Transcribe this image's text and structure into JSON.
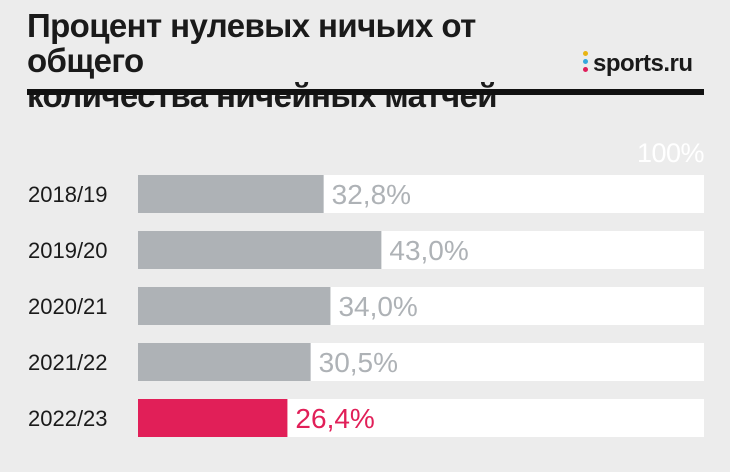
{
  "header": {
    "title_line1": "Процент нулевых ничьих от общего",
    "title_line2": "количества ничейных матчей",
    "logo_text": "sports.ru",
    "logo_dot_colors": [
      "#e8b413",
      "#35a7dd",
      "#df1d5a"
    ]
  },
  "colors": {
    "background": "#ececec",
    "track": "#ffffff",
    "bar": "#aeb2b6",
    "highlight": "#e11f58",
    "label_gray": "#aeb2b6"
  },
  "chart_data": {
    "type": "bar",
    "orientation": "horizontal",
    "categories": [
      "2018/19",
      "2019/20",
      "2020/21",
      "2021/22",
      "2022/23"
    ],
    "values": [
      32.8,
      43.0,
      34.0,
      30.5,
      26.4
    ],
    "value_labels": [
      "32,8%",
      "43,0%",
      "34,0%",
      "30,5%",
      "26,4%"
    ],
    "highlight_index": 4,
    "max_label": "100%",
    "xlim": [
      0,
      100
    ],
    "grid": false,
    "legend": "none"
  }
}
